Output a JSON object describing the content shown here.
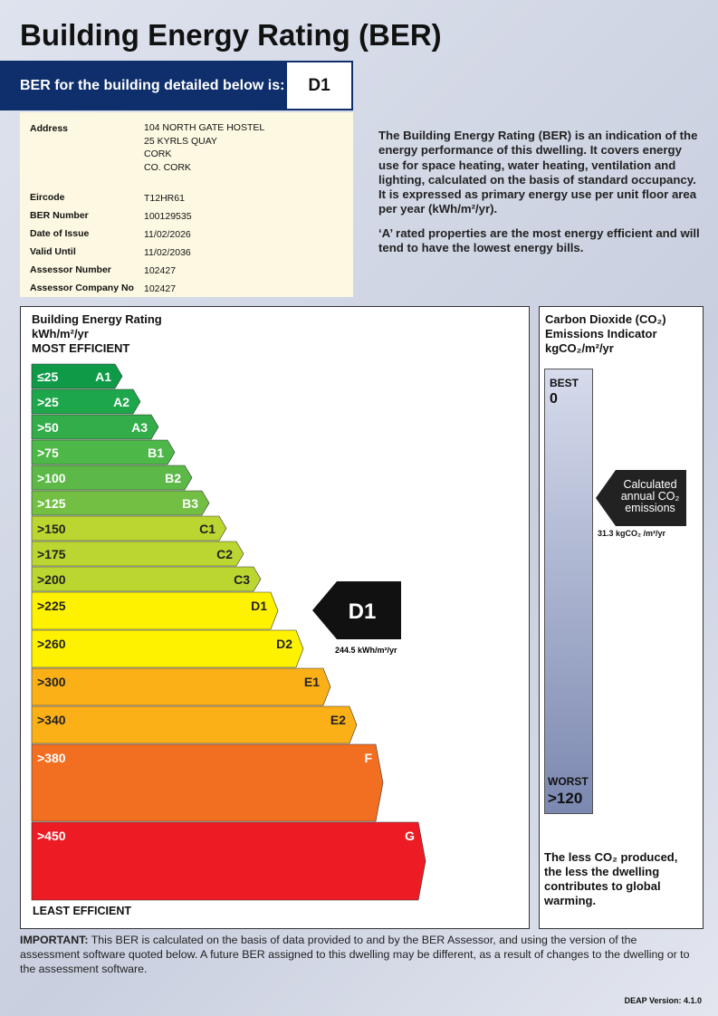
{
  "title": "Building Energy Rating (BER)",
  "banner": {
    "label": "BER for the building detailed below is:",
    "rating": "D1"
  },
  "details": {
    "address_label": "Address",
    "address_lines": [
      "104 NORTH GATE HOSTEL",
      "25 KYRLS QUAY",
      "CORK",
      "CO. CORK"
    ],
    "rows": [
      {
        "label": "Eircode",
        "value": "T12HR61"
      },
      {
        "label": "BER Number",
        "value": "100129535"
      },
      {
        "label": "Date of Issue",
        "value": "11/02/2026"
      },
      {
        "label": "Valid Until",
        "value": "11/02/2036"
      },
      {
        "label": "Assessor Number",
        "value": "102427"
      },
      {
        "label": "Assessor Company No",
        "value": "102427"
      }
    ]
  },
  "description": {
    "p1": "The Building Energy Rating (BER) is an indication of the energy performance of this dwelling.  It covers energy use for space heating, water heating, ventilation and lighting, calculated on the basis of standard occupancy. It is expressed as primary energy use per unit floor area per year (kWh/m²/yr).",
    "p2": "‘A’ rated properties are the most energy efficient and will tend to have the lowest energy bills."
  },
  "energy_scale": {
    "heading1": "Building Energy Rating",
    "heading2": "kWh/m²/yr",
    "top": "MOST EFFICIENT",
    "bottom": "LEAST EFFICIENT",
    "bands": [
      {
        "range": "≤25",
        "grade": "A1",
        "color": "#0f9a48"
      },
      {
        "range": ">25",
        "grade": "A2",
        "color": "#1ea64b"
      },
      {
        "range": ">50",
        "grade": "A3",
        "color": "#32ad49"
      },
      {
        "range": ">75",
        "grade": "B1",
        "color": "#4db748"
      },
      {
        "range": ">100",
        "grade": "B2",
        "color": "#5cb947"
      },
      {
        "range": ">125",
        "grade": "B3",
        "color": "#72bf44"
      },
      {
        "range": ">150",
        "grade": "C1",
        "color": "#bcd631"
      },
      {
        "range": ">175",
        "grade": "C2",
        "color": "#bcd631"
      },
      {
        "range": ">200",
        "grade": "C3",
        "color": "#bcd631"
      },
      {
        "range": ">225",
        "grade": "D1",
        "color": "#fff200"
      },
      {
        "range": ">260",
        "grade": "D2",
        "color": "#fff200"
      },
      {
        "range": ">300",
        "grade": "E1",
        "color": "#fbb018"
      },
      {
        "range": ">340",
        "grade": "E2",
        "color": "#fbb018"
      },
      {
        "range": ">380",
        "grade": "F",
        "color": "#f26f22"
      },
      {
        "range": ">450",
        "grade": "G",
        "color": "#ed1c24"
      }
    ],
    "current": {
      "grade": "D1",
      "value": "244.5 kWh/m²/yr"
    }
  },
  "co2": {
    "heading": "Carbon Dioxide (CO₂) Emissions Indicator",
    "unit": "kgCO₂/m²/yr",
    "best_label": "BEST",
    "best_value": "0",
    "worst_label": "WORST",
    "worst_value": ">120",
    "arrow_text": "Calculated annual CO₂ emissions",
    "value": "31.3 kgCO₂ /m²/yr",
    "note": "The less CO₂ produced, the less the dwelling contributes to global warming."
  },
  "important": {
    "bold": "IMPORTANT:",
    "text": " This BER is calculated on the basis of data provided to and by the BER Assessor, and using the version of the assessment software quoted below.  A future BER assigned to this dwelling may be different, as a result of changes to the dwelling or to the assessment software."
  },
  "footer": {
    "version": "DEAP Version: 4.1.0"
  }
}
